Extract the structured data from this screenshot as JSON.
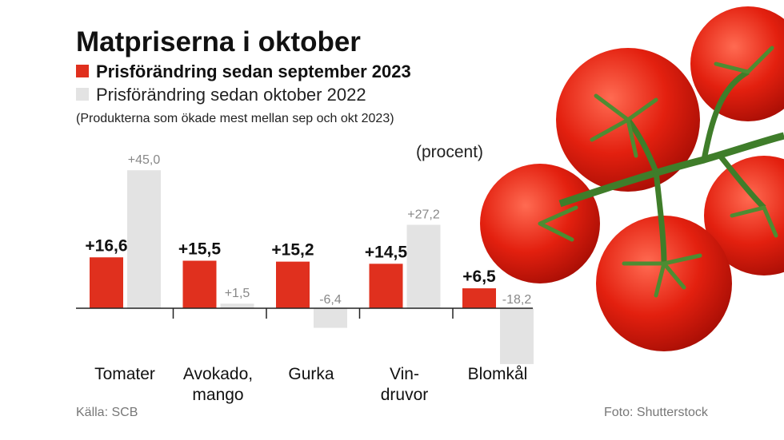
{
  "chart_data": {
    "type": "bar",
    "title": "Matpriserna i oktober",
    "subtitle": "(Produkterna som ökade mest mellan sep och okt 2023)",
    "unit_label": "(procent)",
    "source": "Källa: SCB",
    "credit": "Foto: Shutterstock",
    "categories": [
      "Tomater",
      "Avokado,\nmango",
      "Gurka",
      "Vin-\ndruvor",
      "Blomkål"
    ],
    "series": [
      {
        "name": "Prisförändring sedan september 2023",
        "color": "#e0301e",
        "values": [
          16.6,
          15.5,
          15.2,
          14.5,
          6.5
        ],
        "value_labels": [
          "+16,6",
          "+15,5",
          "+15,2",
          "+14,5",
          "+6,5"
        ]
      },
      {
        "name": "Prisförändring sedan oktober 2022",
        "color": "#e3e3e3",
        "values": [
          45.0,
          1.5,
          -6.4,
          27.2,
          -18.2
        ],
        "value_labels": [
          "+45,0",
          "+1,5",
          "-6,4",
          "+27,2",
          "-18,2"
        ]
      }
    ]
  }
}
